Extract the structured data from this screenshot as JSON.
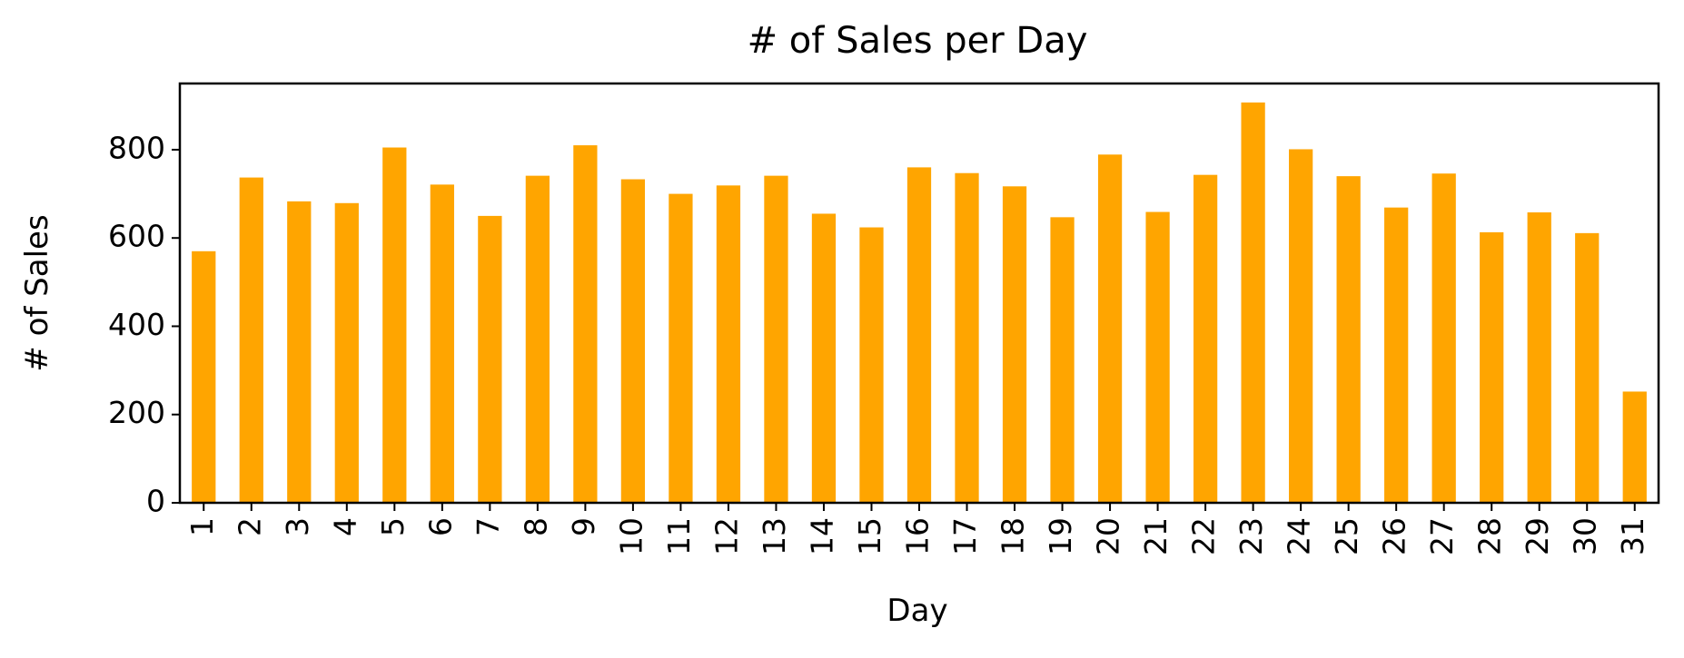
{
  "chart_data": {
    "type": "bar",
    "title": "# of Sales per Day",
    "xlabel": "Day",
    "ylabel": "# of Sales",
    "categories": [
      "1",
      "2",
      "3",
      "4",
      "5",
      "6",
      "7",
      "8",
      "9",
      "10",
      "11",
      "12",
      "13",
      "14",
      "15",
      "16",
      "17",
      "18",
      "19",
      "20",
      "21",
      "22",
      "23",
      "24",
      "25",
      "26",
      "27",
      "28",
      "29",
      "30",
      "31"
    ],
    "values": [
      570,
      737,
      683,
      679,
      805,
      721,
      650,
      741,
      810,
      733,
      700,
      719,
      741,
      655,
      624,
      760,
      747,
      717,
      647,
      789,
      659,
      743,
      907,
      801,
      740,
      669,
      746,
      613,
      658,
      611,
      252
    ],
    "ylim": [
      0,
      950
    ],
    "yticks": [
      0,
      200,
      400,
      600,
      800
    ],
    "bar_color": "#ffa500",
    "grid": false,
    "legend": false
  }
}
